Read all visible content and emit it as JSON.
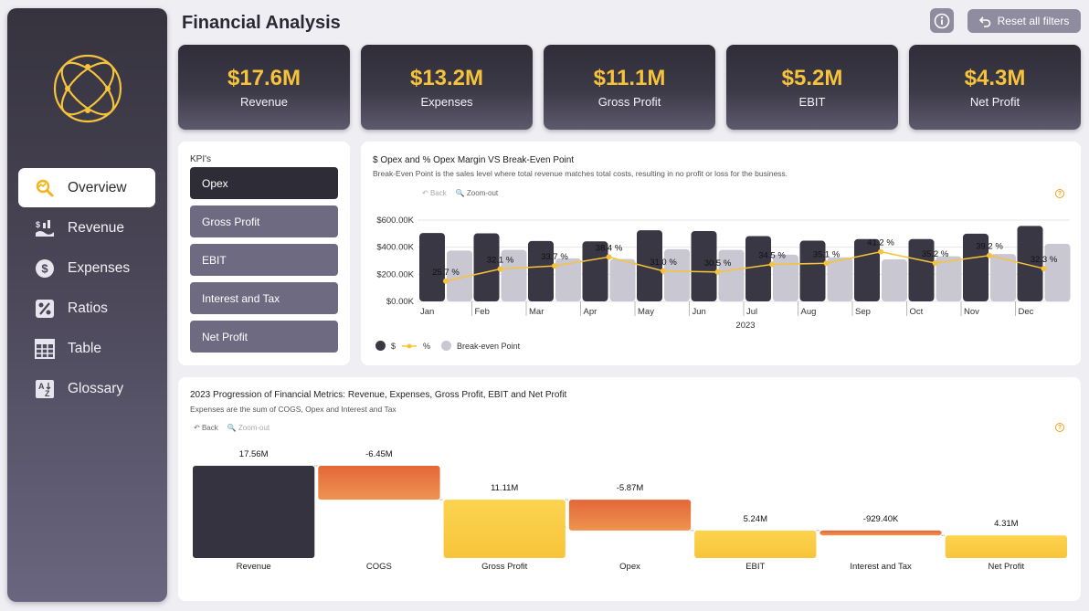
{
  "app": {
    "title": "Financial Analysis",
    "reset_label": "Reset all filters"
  },
  "sidebar": {
    "items": [
      {
        "label": "Overview",
        "icon": "overview-icon",
        "active": true
      },
      {
        "label": "Revenue",
        "icon": "revenue-icon",
        "active": false
      },
      {
        "label": "Expenses",
        "icon": "dollar-icon",
        "active": false
      },
      {
        "label": "Ratios",
        "icon": "percent-icon",
        "active": false
      },
      {
        "label": "Table",
        "icon": "table-icon",
        "active": false
      },
      {
        "label": "Glossary",
        "icon": "glossary-icon",
        "active": false
      }
    ]
  },
  "kpis": [
    {
      "value": "$17.6M",
      "label": "Revenue"
    },
    {
      "value": "$13.2M",
      "label": "Expenses"
    },
    {
      "value": "$11.1M",
      "label": "Gross Profit"
    },
    {
      "value": "$5.2M",
      "label": "EBIT"
    },
    {
      "value": "$4.3M",
      "label": "Net Profit"
    }
  ],
  "kpi_selector": {
    "heading": "KPI's",
    "options": [
      "Opex",
      "Gross Profit",
      "EBIT",
      "Interest and Tax",
      "Net Profit"
    ],
    "selected": "Opex"
  },
  "opex_chart": {
    "title": "$ Opex and % Opex Margin VS Break-Even Point",
    "subtitle": "Break-Even Point is the sales level where total revenue matches total costs, resulting in no profit or loss for the business.",
    "back_label": "Back",
    "zoom_label": "Zoom-out",
    "legend": {
      "dollar": "$",
      "percent": "%",
      "bep": "Break-even Point"
    }
  },
  "waterfall_chart": {
    "title": "2023 Progression of Financial Metrics: Revenue, Expenses, Gross Profit, EBIT and Net Profit",
    "subtitle": "Expenses are the sum of COGS, Opex and Interest and Tax",
    "back_label": "Back",
    "zoom_label": "Zoom-out"
  },
  "chart_data": [
    {
      "type": "bar",
      "categories": [
        "Jan",
        "Feb",
        "Mar",
        "Apr",
        "May",
        "Jun",
        "Jul",
        "Aug",
        "Sep",
        "Oct",
        "Nov",
        "Dec"
      ],
      "xlabel": "2023",
      "year_label": "2023",
      "y_ticks": [
        "$0.00K",
        "$200.00K",
        "$400.00K",
        "$600.00K"
      ],
      "ylim": [
        0,
        600
      ],
      "series": [
        {
          "name": "$",
          "values": [
            505,
            502,
            446,
            443,
            525,
            519,
            482,
            448,
            460,
            460,
            500,
            557
          ],
          "color": "#3a3744"
        },
        {
          "name": "Break-even Point",
          "values": [
            375,
            380,
            318,
            313,
            385,
            380,
            345,
            325,
            310,
            333,
            350,
            425
          ],
          "color": "#c9c7d2"
        },
        {
          "name": "%",
          "values": [
            25.7,
            32.1,
            33.7,
            38.4,
            31.0,
            30.5,
            34.5,
            35.1,
            41.2,
            35.2,
            39.2,
            32.3
          ],
          "color": "#f6c33b",
          "labels": [
            "25.7 %",
            "32.1 %",
            "33.7 %",
            "38.4 %",
            "31.0 %",
            "30.5 %",
            "34.5 %",
            "35.1 %",
            "41.2 %",
            "35.2 %",
            "39.2 %",
            "32.3 %"
          ]
        }
      ]
    },
    {
      "type": "bar",
      "subtype": "waterfall",
      "categories": [
        "Revenue",
        "COGS",
        "Gross Profit",
        "Opex",
        "EBIT",
        "Interest and Tax",
        "Net Profit"
      ],
      "values": [
        17.56,
        -6.45,
        11.11,
        -5.87,
        5.24,
        -0.9294,
        4.31
      ],
      "labels": [
        "17.56M",
        "-6.45M",
        "11.11M",
        "-5.87M",
        "5.24M",
        "-929.40K",
        "4.31M"
      ],
      "kinds": [
        "total",
        "decrease",
        "total",
        "decrease",
        "total",
        "decrease",
        "total"
      ],
      "colors": {
        "revenue": "#363340",
        "decrease": "#e46a3a",
        "total": "#f8c338"
      }
    }
  ]
}
